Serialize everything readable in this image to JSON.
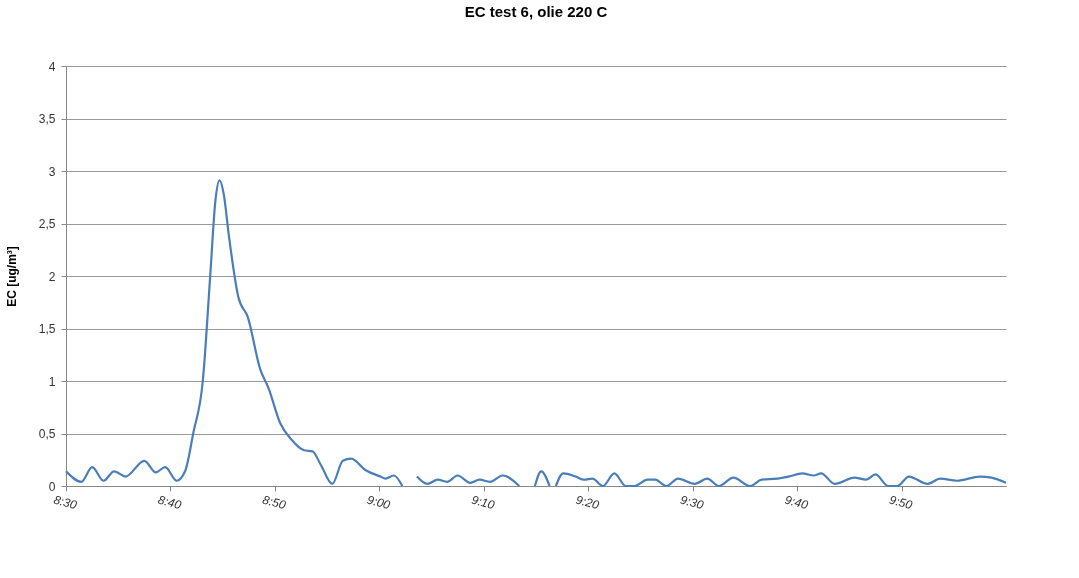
{
  "chart_data": {
    "type": "line",
    "title": "EC test 6, olie 220 C",
    "ylabel": "EC  [ug/m³]",
    "x": [
      8.5,
      8.5245,
      8.5417,
      8.56,
      8.5767,
      8.595,
      8.625,
      8.6433,
      8.6583,
      8.6767,
      8.69,
      8.7033,
      8.7183,
      8.73,
      8.7383,
      8.745,
      8.7517,
      8.76,
      8.775,
      8.79,
      8.81,
      8.8233,
      8.8417,
      8.86,
      8.88,
      8.8933,
      8.9067,
      8.925,
      8.9417,
      8.955,
      8.9783,
      9.0017,
      9.01,
      9.0233,
      9.0367,
      9.05,
      9.06,
      9.0767,
      9.0933,
      9.1083,
      9.125,
      9.145,
      9.16,
      9.1767,
      9.1967,
      9.2233,
      9.2367,
      9.2483,
      9.2583,
      9.2717,
      9.2767,
      9.2817,
      9.2933,
      9.3133,
      9.3267,
      9.34,
      9.3567,
      9.375,
      9.3933,
      9.4067,
      9.4283,
      9.44,
      9.4583,
      9.4767,
      9.5033,
      9.5233,
      9.5417,
      9.565,
      9.5917,
      9.61,
      9.635,
      9.6533,
      9.675,
      9.6933,
      9.705,
      9.7267,
      9.7583,
      9.7767,
      9.7917,
      9.8117,
      9.8267,
      9.845,
      9.875,
      9.895,
      9.9217,
      9.9583,
      9.9767,
      10.0
    ],
    "series": [
      {
        "color": "#4a7ebb",
        "values": [
          0.14,
          0.04,
          0.18,
          0.05,
          0.14,
          0.09,
          0.24,
          0.13,
          0.18,
          0.05,
          0.14,
          0.51,
          1.0,
          1.99,
          2.71,
          2.91,
          2.78,
          2.38,
          1.8,
          1.61,
          1.11,
          0.93,
          0.6,
          0.44,
          0.34,
          0.33,
          0.2,
          0.02,
          0.24,
          0.26,
          0.15,
          0.09,
          0.07,
          0.1,
          0.0,
          null,
          0.09,
          0.02,
          0.06,
          0.04,
          0.1,
          0.03,
          0.06,
          0.04,
          0.1,
          0.0,
          null,
          0.0,
          0.14,
          0.0,
          null,
          0.0,
          0.12,
          0.09,
          0.06,
          0.07,
          0.0,
          0.12,
          0.0,
          0.0,
          0.06,
          0.06,
          0.0,
          0.07,
          0.02,
          0.07,
          0.0,
          0.08,
          0.0,
          0.06,
          0.07,
          0.09,
          0.12,
          0.1,
          0.12,
          0.02,
          0.08,
          0.06,
          0.11,
          0.0,
          0.0,
          0.09,
          0.02,
          0.07,
          0.05,
          0.09,
          0.08,
          0.03
        ]
      }
    ],
    "xlim": [
      8.5,
      10.0
    ],
    "xticks": [
      {
        "value": 8.5,
        "label": "8:30"
      },
      {
        "value": 8.6667,
        "label": "8:40"
      },
      {
        "value": 8.8333,
        "label": "8:50"
      },
      {
        "value": 9.0,
        "label": "9:00"
      },
      {
        "value": 9.1667,
        "label": "9:10"
      },
      {
        "value": 9.3333,
        "label": "9:20"
      },
      {
        "value": 9.5,
        "label": "9:30"
      },
      {
        "value": 9.6667,
        "label": "9:40"
      },
      {
        "value": 9.8333,
        "label": "9:50"
      }
    ],
    "ylim": [
      0,
      4
    ],
    "yticks": [
      0,
      {
        "value": 0.5,
        "label": "0,5"
      },
      1,
      {
        "value": 1.5,
        "label": "1,5"
      },
      2,
      {
        "value": 2.5,
        "label": "2,5"
      },
      3,
      {
        "value": 3.5,
        "label": "3,5"
      },
      4
    ],
    "grid": "y"
  }
}
